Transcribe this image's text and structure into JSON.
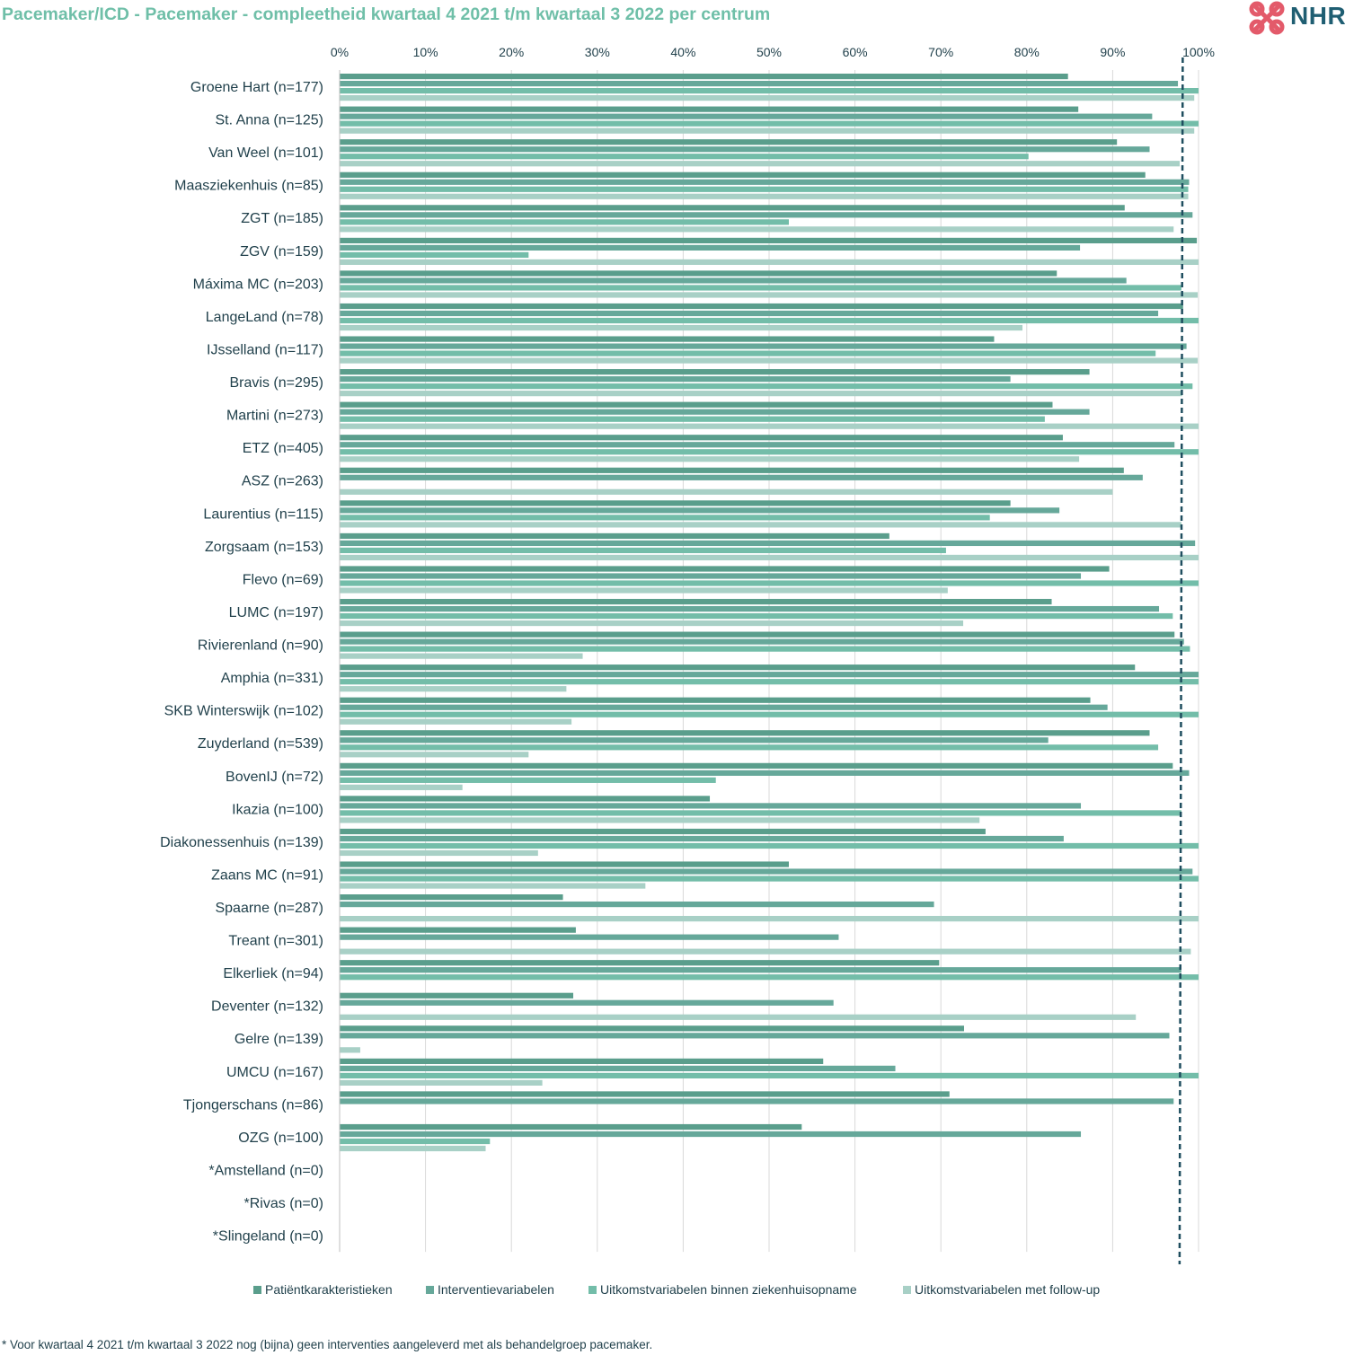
{
  "title": "Pacemaker/ICD - Pacemaker - compleetheid kwartaal 4 2021 t/m kwartaal 3 2022 per centrum",
  "logo": {
    "text": "NHR",
    "icon": "heart-knot-logo"
  },
  "footnote": "* Voor kwartaal 4 2021 t/m kwartaal 3 2022 nog (bijna) geen interventies aangeleverd met als behandelgroep pacemaker.",
  "colors": {
    "series": [
      "#5a9e8c",
      "#66a89a",
      "#73bda9",
      "#a8d0c6"
    ],
    "reference_line": "#1f4e5f",
    "grid": "#d9d9d9",
    "label": "#1f3f4a",
    "title": "#6fbfa8"
  },
  "chart_data": {
    "type": "bar",
    "orientation": "horizontal",
    "xlim": [
      0,
      100
    ],
    "xticks": [
      "0%",
      "10%",
      "20%",
      "30%",
      "40%",
      "50%",
      "60%",
      "70%",
      "80%",
      "90%",
      "100%"
    ],
    "reference_line": 98,
    "grid": true,
    "legend_position": "bottom",
    "categories": [
      "Groene Hart (n=177)",
      "St. Anna (n=125)",
      "Van Weel (n=101)",
      "Maasziekenhuis (n=85)",
      "ZGT (n=185)",
      "ZGV (n=159)",
      "Máxima MC (n=203)",
      "LangeLand (n=78)",
      "IJsselland (n=117)",
      "Bravis (n=295)",
      "Martini (n=273)",
      "ETZ (n=405)",
      "ASZ (n=263)",
      "Laurentius (n=115)",
      "Zorgsaam (n=153)",
      "Flevo (n=69)",
      "LUMC (n=197)",
      "Rivierenland (n=90)",
      "Amphia (n=331)",
      "SKB Winterswijk (n=102)",
      "Zuyderland (n=539)",
      "BovenIJ (n=72)",
      "Ikazia (n=100)",
      "Diakonessenhuis (n=139)",
      "Zaans MC (n=91)",
      "Spaarne (n=287)",
      "Treant (n=301)",
      "Elkerliek (n=94)",
      "Deventer (n=132)",
      "Gelre (n=139)",
      "UMCU (n=167)",
      "Tjongerschans (n=86)",
      "OZG (n=100)",
      "*Amstelland (n=0)",
      "*Rivas (n=0)",
      "*Slingeland (n=0)"
    ],
    "series": [
      {
        "name": "Patiëntkarakteristieken",
        "values": [
          84.8,
          86,
          90.5,
          93.8,
          91.4,
          99.8,
          83.5,
          98.2,
          76.2,
          87.3,
          83,
          84.2,
          91.3,
          78.1,
          64,
          89.6,
          82.9,
          97.2,
          92.6,
          87.4,
          94.3,
          97,
          43.1,
          75.2,
          52.3,
          26,
          27.5,
          69.8,
          27.2,
          72.7,
          56.3,
          71,
          53.8,
          null,
          null,
          null
        ]
      },
      {
        "name": "Interventievariabelen",
        "values": [
          97.6,
          94.6,
          94.3,
          98.9,
          99.3,
          86.2,
          91.6,
          95.3,
          98.6,
          78.1,
          87.3,
          97.2,
          93.5,
          83.8,
          99.6,
          86.3,
          95.4,
          98.3,
          100,
          89.4,
          82.5,
          98.9,
          86.3,
          84.3,
          99.3,
          69.2,
          58.1,
          98,
          57.5,
          96.6,
          64.7,
          97.1,
          86.3,
          null,
          null,
          null
        ]
      },
      {
        "name": "Uitkomstvariabelen binnen ziekenhuisopname",
        "values": [
          100,
          100,
          80.2,
          98.8,
          52.3,
          22,
          98,
          100,
          95,
          99.3,
          82.1,
          100,
          0,
          75.7,
          70.6,
          100,
          97,
          99,
          100,
          100,
          95.3,
          43.8,
          98,
          100,
          100,
          0,
          0,
          100,
          0,
          0,
          100,
          0,
          17.5,
          null,
          null,
          null
        ]
      },
      {
        "name": "Uitkomstvariabelen met follow-up",
        "values": [
          99.5,
          99.5,
          97.8,
          98.8,
          97.1,
          100,
          99.9,
          79.5,
          99.9,
          98.1,
          100,
          86.1,
          90,
          98,
          100,
          70.8,
          72.6,
          28.3,
          26.4,
          27,
          22,
          14.3,
          74.5,
          23.1,
          35.6,
          100,
          99.1,
          0,
          92.7,
          2.4,
          23.6,
          0,
          17,
          null,
          null,
          null
        ]
      }
    ]
  }
}
